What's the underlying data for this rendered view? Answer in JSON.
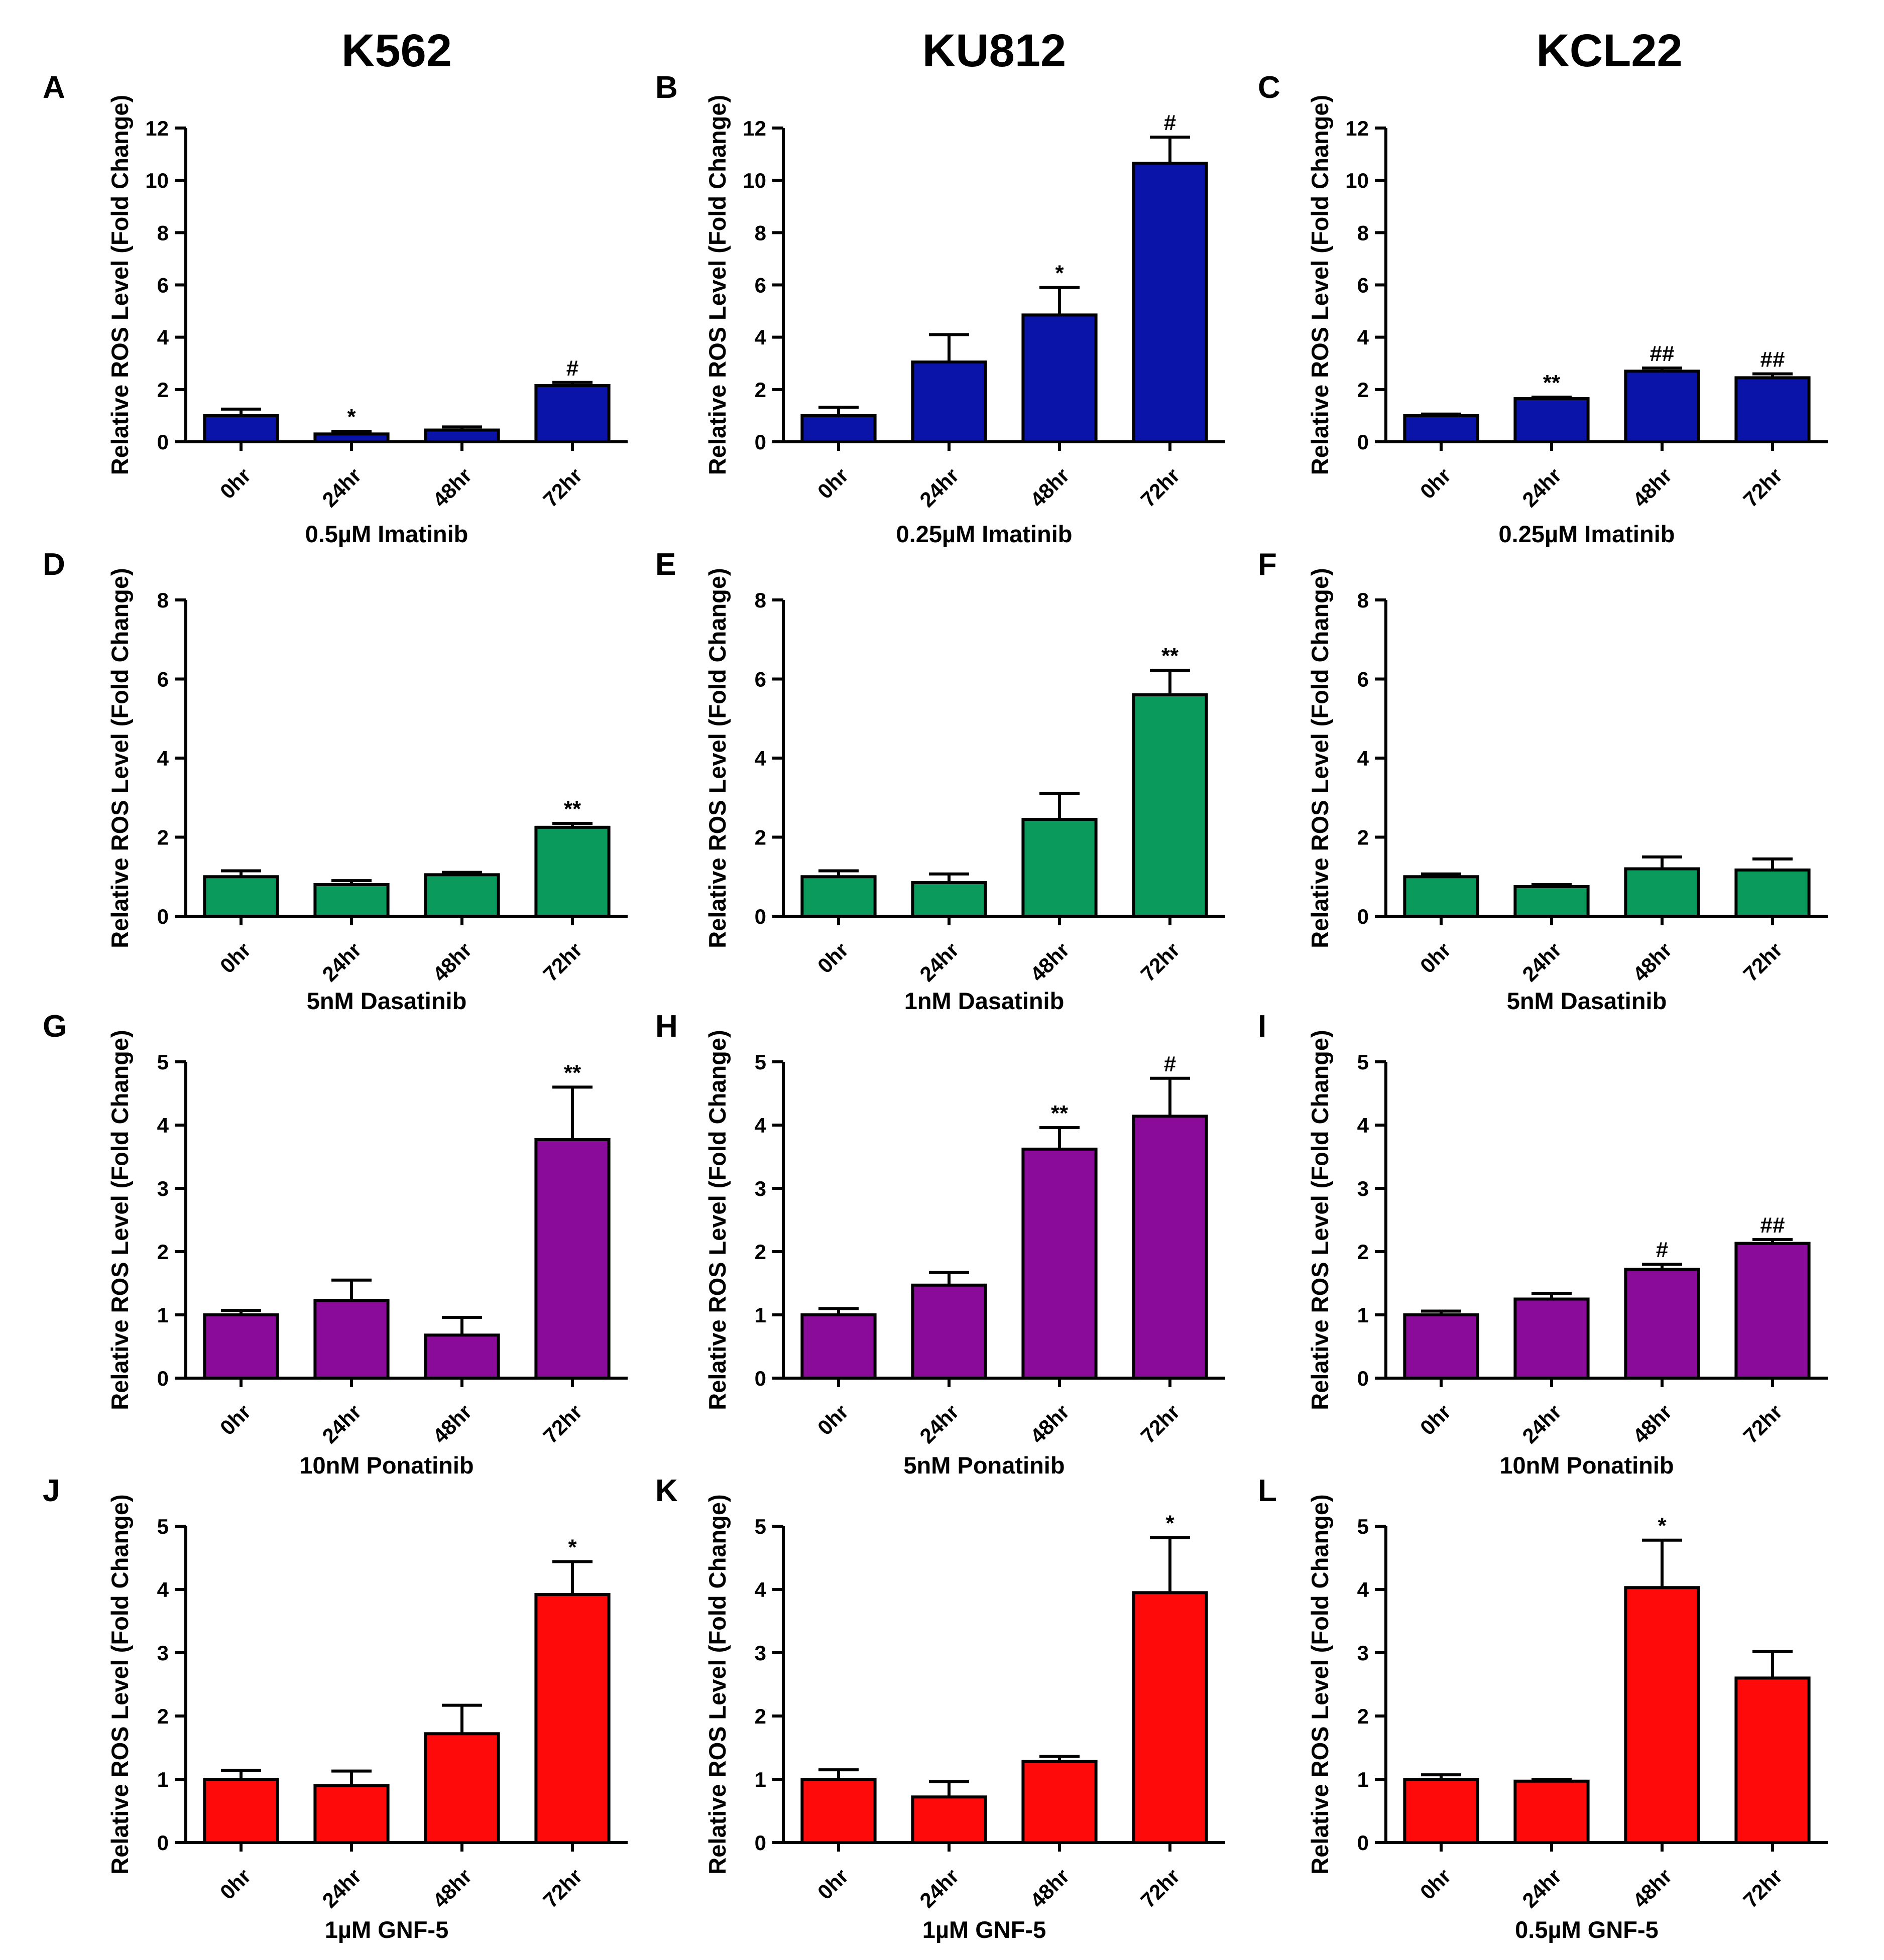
{
  "figure": {
    "column_headers": [
      "K562",
      "KU812",
      "KCL22"
    ]
  },
  "chart_data": [
    {
      "type": "bar",
      "letter": "A",
      "cell_line": "K562",
      "title": "",
      "categories": [
        "0hr",
        "24hr",
        "48hr",
        "72hr"
      ],
      "values": [
        1.0,
        0.3,
        0.45,
        2.15
      ],
      "errors": [
        0.25,
        0.1,
        0.12,
        0.12
      ],
      "annotations": [
        "",
        "*",
        "",
        "#"
      ],
      "xlabel": "0.5µM Imatinib",
      "ylabel": "Relative ROS Level (Fold Change)",
      "ylim": [
        0,
        12
      ],
      "yticks": [
        0,
        2,
        4,
        6,
        8,
        10,
        12
      ],
      "color": "#0a14a8"
    },
    {
      "type": "bar",
      "letter": "B",
      "cell_line": "KU812",
      "title": "",
      "categories": [
        "0hr",
        "24hr",
        "48hr",
        "72hr"
      ],
      "values": [
        1.0,
        3.05,
        4.85,
        10.65
      ],
      "errors": [
        0.32,
        1.05,
        1.05,
        1.0
      ],
      "annotations": [
        "",
        "",
        "*",
        "#"
      ],
      "xlabel": "0.25µM Imatinib",
      "ylabel": "Relative ROS Level (Fold Change)",
      "ylim": [
        0,
        12
      ],
      "yticks": [
        0,
        2,
        4,
        6,
        8,
        10,
        12
      ],
      "color": "#0a14a8"
    },
    {
      "type": "bar",
      "letter": "C",
      "cell_line": "KCL22",
      "title": "",
      "categories": [
        "0hr",
        "24hr",
        "48hr",
        "72hr"
      ],
      "values": [
        1.0,
        1.65,
        2.7,
        2.45
      ],
      "errors": [
        0.06,
        0.06,
        0.12,
        0.15
      ],
      "annotations": [
        "",
        "**",
        "##",
        "##"
      ],
      "xlabel": "0.25µM Imatinib",
      "ylabel": "Relative ROS Level (Fold Change)",
      "ylim": [
        0,
        12
      ],
      "yticks": [
        0,
        2,
        4,
        6,
        8,
        10,
        12
      ],
      "color": "#0a14a8"
    },
    {
      "type": "bar",
      "letter": "D",
      "cell_line": "K562",
      "title": "",
      "categories": [
        "0hr",
        "24hr",
        "48hr",
        "72hr"
      ],
      "values": [
        1.0,
        0.8,
        1.05,
        2.25
      ],
      "errors": [
        0.15,
        0.1,
        0.06,
        0.1
      ],
      "annotations": [
        "",
        "",
        "",
        "**"
      ],
      "xlabel": "5nM Dasatinib",
      "ylabel": "Relative ROS Level (Fold Change)",
      "ylim": [
        0,
        8
      ],
      "yticks": [
        0,
        2,
        4,
        6,
        8
      ],
      "color": "#0a9a5c"
    },
    {
      "type": "bar",
      "letter": "E",
      "cell_line": "KU812",
      "title": "",
      "categories": [
        "0hr",
        "24hr",
        "48hr",
        "72hr"
      ],
      "values": [
        1.0,
        0.85,
        2.45,
        5.6
      ],
      "errors": [
        0.15,
        0.22,
        0.65,
        0.62
      ],
      "annotations": [
        "",
        "",
        "",
        "**"
      ],
      "xlabel": "1nM Dasatinib",
      "ylabel": "Relative ROS Level (Fold Change)",
      "ylim": [
        0,
        8
      ],
      "yticks": [
        0,
        2,
        4,
        6,
        8
      ],
      "color": "#0a9a5c"
    },
    {
      "type": "bar",
      "letter": "F",
      "cell_line": "KCL22",
      "title": "",
      "categories": [
        "0hr",
        "24hr",
        "48hr",
        "72hr"
      ],
      "values": [
        1.0,
        0.75,
        1.2,
        1.17
      ],
      "errors": [
        0.07,
        0.05,
        0.3,
        0.28
      ],
      "annotations": [
        "",
        "",
        "",
        ""
      ],
      "xlabel": "5nM Dasatinib",
      "ylabel": "Relative ROS Level (Fold Change)",
      "ylim": [
        0,
        8
      ],
      "yticks": [
        0,
        2,
        4,
        6,
        8
      ],
      "color": "#0a9a5c"
    },
    {
      "type": "bar",
      "letter": "G",
      "cell_line": "K562",
      "title": "",
      "categories": [
        "0hr",
        "24hr",
        "48hr",
        "72hr"
      ],
      "values": [
        1.0,
        1.23,
        0.68,
        3.77
      ],
      "errors": [
        0.07,
        0.32,
        0.28,
        0.83
      ],
      "annotations": [
        "",
        "",
        "",
        "**"
      ],
      "xlabel": "10nM Ponatinib",
      "ylabel": "Relative ROS Level (Fold Change)",
      "ylim": [
        0,
        5
      ],
      "yticks": [
        0,
        1,
        2,
        3,
        4,
        5
      ],
      "color": "#8a0a9a"
    },
    {
      "type": "bar",
      "letter": "H",
      "cell_line": "KU812",
      "title": "",
      "categories": [
        "0hr",
        "24hr",
        "48hr",
        "72hr"
      ],
      "values": [
        1.0,
        1.47,
        3.62,
        4.14
      ],
      "errors": [
        0.1,
        0.2,
        0.34,
        0.6
      ],
      "annotations": [
        "",
        "",
        "**",
        "#"
      ],
      "xlabel": "5nM Ponatinib",
      "ylabel": "Relative ROS Level (Fold Change)",
      "ylim": [
        0,
        5
      ],
      "yticks": [
        0,
        1,
        2,
        3,
        4,
        5
      ],
      "color": "#8a0a9a"
    },
    {
      "type": "bar",
      "letter": "I",
      "cell_line": "KCL22",
      "title": "",
      "categories": [
        "0hr",
        "24hr",
        "48hr",
        "72hr"
      ],
      "values": [
        1.0,
        1.25,
        1.72,
        2.13
      ],
      "errors": [
        0.06,
        0.09,
        0.08,
        0.06
      ],
      "annotations": [
        "",
        "",
        "#",
        "##"
      ],
      "xlabel": "10nM Ponatinib",
      "ylabel": "Relative ROS Level (Fold Change)",
      "ylim": [
        0,
        5
      ],
      "yticks": [
        0,
        1,
        2,
        3,
        4,
        5
      ],
      "color": "#8a0a9a"
    },
    {
      "type": "bar",
      "letter": "J",
      "cell_line": "K562",
      "title": "",
      "categories": [
        "0hr",
        "24hr",
        "48hr",
        "72hr"
      ],
      "values": [
        1.0,
        0.9,
        1.72,
        3.92
      ],
      "errors": [
        0.14,
        0.23,
        0.45,
        0.52
      ],
      "annotations": [
        "",
        "",
        "",
        "*"
      ],
      "xlabel": "1µM GNF-5",
      "ylabel": "Relative ROS Level (Fold Change)",
      "ylim": [
        0,
        5
      ],
      "yticks": [
        0,
        1,
        2,
        3,
        4,
        5
      ],
      "color": "#ff0a0a"
    },
    {
      "type": "bar",
      "letter": "K",
      "cell_line": "KU812",
      "title": "",
      "categories": [
        "0hr",
        "24hr",
        "48hr",
        "72hr"
      ],
      "values": [
        1.0,
        0.72,
        1.28,
        3.95
      ],
      "errors": [
        0.15,
        0.24,
        0.08,
        0.87
      ],
      "annotations": [
        "",
        "",
        "",
        "*"
      ],
      "xlabel": "1µM GNF-5",
      "ylabel": "Relative ROS Level (Fold Change)",
      "ylim": [
        0,
        5
      ],
      "yticks": [
        0,
        1,
        2,
        3,
        4,
        5
      ],
      "color": "#ff0a0a"
    },
    {
      "type": "bar",
      "letter": "L",
      "cell_line": "KCL22",
      "title": "",
      "categories": [
        "0hr",
        "24hr",
        "48hr",
        "72hr"
      ],
      "values": [
        1.0,
        0.97,
        4.03,
        2.6
      ],
      "errors": [
        0.07,
        0.03,
        0.75,
        0.42
      ],
      "annotations": [
        "",
        "",
        "*",
        ""
      ],
      "xlabel": "0.5µM GNF-5",
      "ylabel": "Relative ROS Level (Fold Change)",
      "ylim": [
        0,
        5
      ],
      "yticks": [
        0,
        1,
        2,
        3,
        4,
        5
      ],
      "color": "#ff0a0a"
    }
  ]
}
